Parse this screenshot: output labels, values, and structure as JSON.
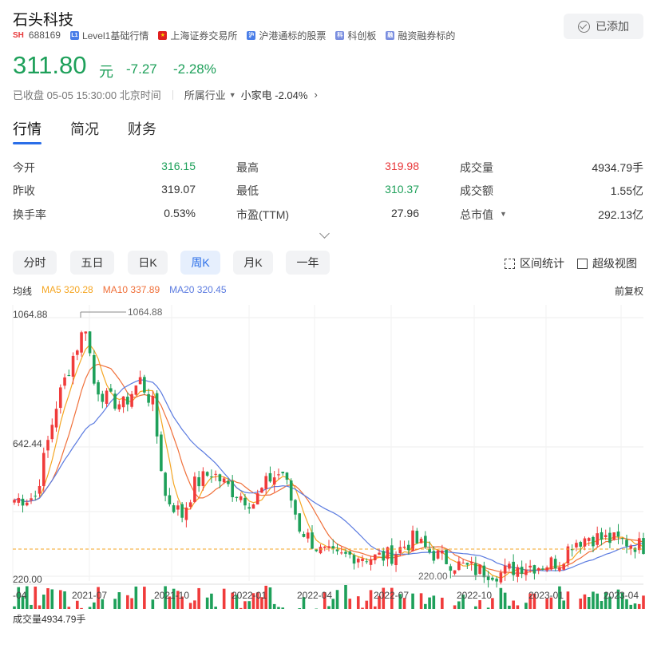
{
  "stock": {
    "name": "石头科技",
    "exchange_badge": "SH",
    "code": "688169",
    "tags": [
      {
        "icon": "L1",
        "label": "Level1基础行情"
      },
      {
        "icon": "flag",
        "label": "上海证券交易所"
      },
      {
        "icon": "沪",
        "label": "沪港通标的股票"
      },
      {
        "icon": "科",
        "label": "科创板"
      },
      {
        "icon": "融",
        "label": "融资融券标的"
      }
    ],
    "add_label": "已添加",
    "price": "311.80",
    "currency": "元",
    "change": "-7.27",
    "change_pct": "-2.28%",
    "status": "已收盘 05-05 15:30:00 北京时间",
    "industry_label": "所属行业",
    "industry": "小家电 -2.04%"
  },
  "tabs": [
    "行情",
    "简况",
    "财务"
  ],
  "quotes": [
    [
      {
        "label": "今开",
        "value": "316.15",
        "color": "green"
      },
      {
        "label": "最高",
        "value": "319.98",
        "color": "red"
      },
      {
        "label": "成交量",
        "value": "4934.79手",
        "color": "dark"
      }
    ],
    [
      {
        "label": "昨收",
        "value": "319.07",
        "color": "dark"
      },
      {
        "label": "最低",
        "value": "310.37",
        "color": "green"
      },
      {
        "label": "成交额",
        "value": "1.55亿",
        "color": "dark"
      }
    ],
    [
      {
        "label": "换手率",
        "value": "0.53%",
        "color": "dark"
      },
      {
        "label": "市盈(TTM)",
        "value": "27.96",
        "color": "dark"
      },
      {
        "label": "总市值",
        "value": "292.13亿",
        "color": "dark"
      }
    ]
  ],
  "periods": [
    "分时",
    "五日",
    "日K",
    "周K",
    "月K",
    "一年"
  ],
  "active_period": "周K",
  "tools": [
    "区间统计",
    "超级视图"
  ],
  "legend": {
    "title": "均线",
    "ma5": "MA5 320.28",
    "ma10": "MA10 337.89",
    "ma20": "MA20 320.45",
    "adjust": "前复权"
  },
  "colors": {
    "up": "#f03b3b",
    "down": "#1ea05a",
    "ma5": "#f5a623",
    "ma10": "#f0703a",
    "ma20": "#5b7be0",
    "accent": "#2a6ee8"
  },
  "volume_label": "成交量4934.79手",
  "chart_data": {
    "type": "candlestick",
    "y_labels": [
      "1064.88",
      "642.44",
      "220.00"
    ],
    "annotations": {
      "high": "1064.88",
      "low": "220.00"
    },
    "x_labels": [
      "-04",
      "2021-07",
      "2021-10",
      "2022-01",
      "2022-04",
      "2022-07",
      "2022-10",
      "2023-01",
      "2023-04"
    ],
    "ylim": [
      220.0,
      1064.88
    ],
    "last_close": 311.8,
    "grid": true
  }
}
